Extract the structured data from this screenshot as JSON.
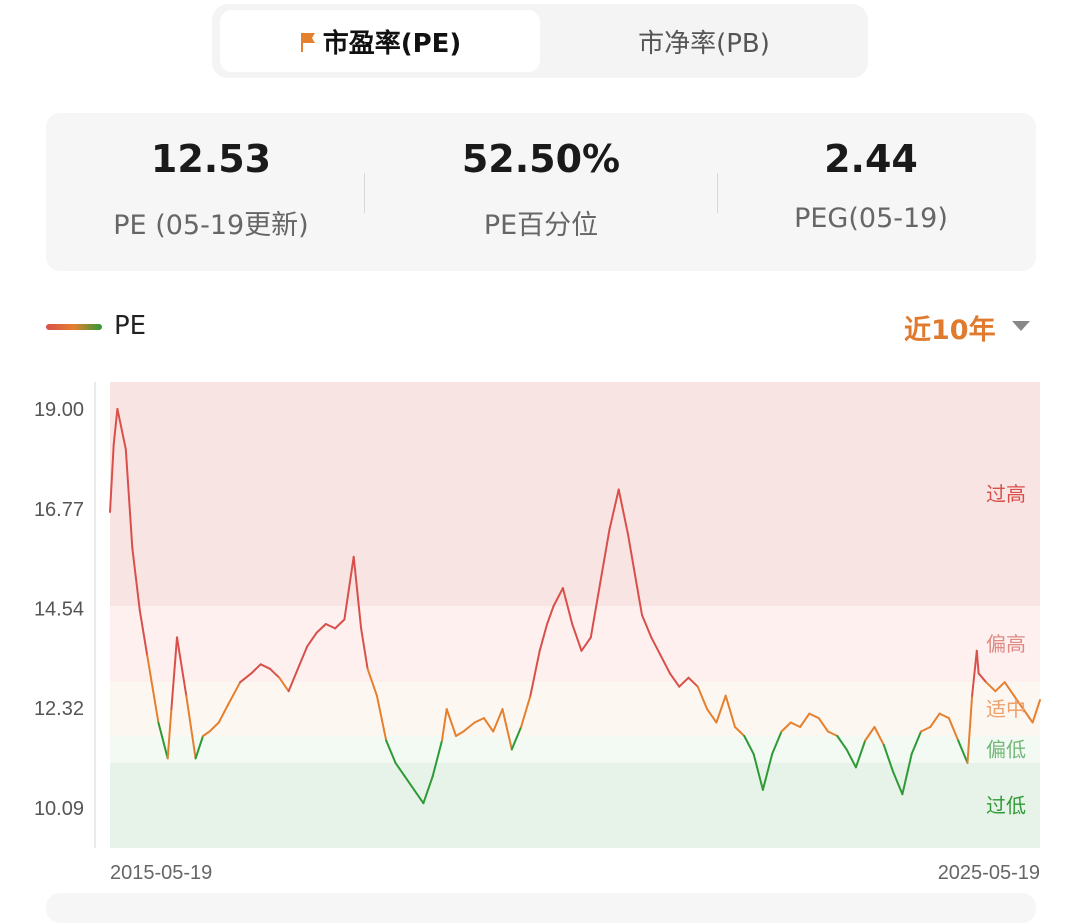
{
  "tabs": [
    {
      "label": "市盈率(PE)",
      "active": true
    },
    {
      "label": "市净率(PB)",
      "active": false
    }
  ],
  "stats": [
    {
      "value": "12.53",
      "label": "PE (05-19更新)"
    },
    {
      "value": "52.50%",
      "label": "PE百分位"
    },
    {
      "value": "2.44",
      "label": "PEG(05-19)"
    }
  ],
  "legend": {
    "label": "PE"
  },
  "range": {
    "label": "近10年"
  },
  "colors": {
    "accent": "#e07a2e",
    "high": "#d9504a",
    "mid": "#e5802f",
    "low": "#2e9a36"
  },
  "chart_data": {
    "type": "line",
    "x_start": "2015-05-19",
    "x_end": "2025-05-19",
    "y_ticks": [
      "19.00",
      "16.77",
      "14.54",
      "12.32",
      "10.09"
    ],
    "ylim": [
      9.2,
      19.6
    ],
    "zones": [
      {
        "label": "过高",
        "from": 14.6,
        "to": 19.6
      },
      {
        "label": "偏高",
        "from": 12.9,
        "to": 14.6
      },
      {
        "label": "适中",
        "from": 11.7,
        "to": 12.9
      },
      {
        "label": "偏低",
        "from": 11.1,
        "to": 11.7
      },
      {
        "label": "过低",
        "from": 9.2,
        "to": 11.1
      }
    ],
    "series": [
      {
        "x": [
          2015.38,
          2015.42,
          2015.46,
          2015.55,
          2015.62,
          2015.7,
          2015.78,
          2015.9,
          2016.0,
          2016.04,
          2016.1,
          2016.2,
          2016.3,
          2016.38,
          2016.45,
          2016.55,
          2016.65,
          2016.78,
          2016.9,
          2017.0,
          2017.1,
          2017.2,
          2017.3,
          2017.4,
          2017.5,
          2017.6,
          2017.7,
          2017.8,
          2017.9,
          2018.0,
          2018.08,
          2018.15,
          2018.25,
          2018.35,
          2018.45,
          2018.55,
          2018.65,
          2018.75,
          2018.85,
          2018.95,
          2019.0,
          2019.1,
          2019.18,
          2019.3,
          2019.4,
          2019.5,
          2019.6,
          2019.7,
          2019.8,
          2019.9,
          2020.0,
          2020.08,
          2020.15,
          2020.25,
          2020.35,
          2020.45,
          2020.55,
          2020.65,
          2020.75,
          2020.85,
          2020.95,
          2021.05,
          2021.1,
          2021.2,
          2021.3,
          2021.4,
          2021.5,
          2021.6,
          2021.7,
          2021.8,
          2021.9,
          2022.0,
          2022.1,
          2022.2,
          2022.3,
          2022.4,
          2022.5,
          2022.6,
          2022.7,
          2022.8,
          2022.9,
          2023.0,
          2023.1,
          2023.2,
          2023.3,
          2023.4,
          2023.5,
          2023.6,
          2023.7,
          2023.8,
          2023.9,
          2024.0,
          2024.1,
          2024.2,
          2024.3,
          2024.4,
          2024.5,
          2024.6,
          2024.65,
          2024.7,
          2024.72,
          2024.8,
          2024.9,
          2025.0,
          2025.1,
          2025.2,
          2025.3,
          2025.38
        ],
        "y": [
          16.7,
          18.2,
          19.0,
          18.1,
          15.9,
          14.5,
          13.5,
          12.0,
          11.2,
          12.3,
          13.9,
          12.6,
          11.2,
          11.7,
          11.8,
          12.0,
          12.4,
          12.9,
          13.1,
          13.3,
          13.2,
          13.0,
          12.7,
          13.2,
          13.7,
          14.0,
          14.2,
          14.1,
          14.3,
          15.7,
          14.1,
          13.2,
          12.6,
          11.6,
          11.1,
          10.8,
          10.5,
          10.2,
          10.8,
          11.6,
          12.3,
          11.7,
          11.8,
          12.0,
          12.1,
          11.8,
          12.3,
          11.4,
          11.9,
          12.6,
          13.6,
          14.2,
          14.6,
          15.0,
          14.2,
          13.6,
          13.9,
          15.1,
          16.3,
          17.2,
          16.2,
          15.0,
          14.4,
          13.9,
          13.5,
          13.1,
          12.8,
          13.0,
          12.8,
          12.3,
          12.0,
          12.6,
          11.9,
          11.7,
          11.3,
          10.5,
          11.3,
          11.8,
          12.0,
          11.9,
          12.2,
          12.1,
          11.8,
          11.7,
          11.4,
          11.0,
          11.6,
          11.9,
          11.5,
          10.9,
          10.4,
          11.3,
          11.8,
          11.9,
          12.2,
          12.1,
          11.6,
          11.1,
          12.6,
          13.6,
          13.1,
          12.9,
          12.7,
          12.9,
          12.6,
          12.3,
          12.0,
          12.5
        ]
      }
    ],
    "grid": false,
    "legend_position": "top-left"
  }
}
